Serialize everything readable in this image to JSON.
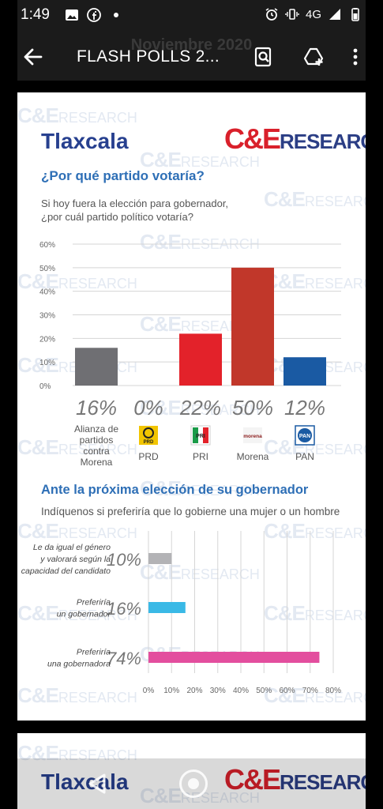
{
  "status_bar": {
    "time": "1:49",
    "network": "4G"
  },
  "app_bar": {
    "title": "FLASH POLLS 2...",
    "ghost_header": "Noviembre 2020"
  },
  "document": {
    "state": "Tlaxcala",
    "logo_ce": "C&E",
    "logo_research": "RESEARCH",
    "watermark": "C&E",
    "watermark_small": "RESEARCH",
    "question1_title": "¿Por qué partido votaría?",
    "question1_text_line1": "Si hoy fuera la elección para gobernador,",
    "question1_text_line2": "¿por cuál partido político votaría?",
    "question2_title": "Ante la próxima elección de su gobernador",
    "question2_text": "Indíquenos si preferiría que lo gobierne una mujer o un hombre"
  },
  "chart_data": [
    {
      "type": "bar",
      "title": "",
      "categories": [
        "Alianza de partidos contra Morena",
        "PRD",
        "PRI",
        "Morena",
        "PAN"
      ],
      "category_lines": [
        [
          "Alianza de",
          "partidos",
          "contra",
          "Morena"
        ],
        [
          "PRD"
        ],
        [
          "PRI"
        ],
        [
          "Morena"
        ],
        [
          "PAN"
        ]
      ],
      "values": [
        16,
        0,
        22,
        50,
        12
      ],
      "value_labels": [
        "16%",
        "0%",
        "22%",
        "50%",
        "12%"
      ],
      "colors": [
        "#6f6f73",
        "#f2c500",
        "#e3222a",
        "#c1372a",
        "#1a5aa3"
      ],
      "icons": [
        "",
        "prd-logo-icon",
        "pri-logo-icon",
        "morena-logo-icon",
        "pan-logo-icon"
      ],
      "icon_texts": [
        "",
        "PRD",
        "PRI",
        "morena",
        "PAN"
      ],
      "yticks": [
        "0%",
        "10%",
        "20%",
        "30%",
        "40%",
        "50%",
        "60%"
      ],
      "ylim": [
        0,
        60
      ],
      "grid": true
    },
    {
      "type": "bar",
      "orientation": "horizontal",
      "title": "",
      "categories": [
        "Le da igual el género y valorará según la capacidad del candidato",
        "Preferiría un gobernador",
        "Preferiría una gobernadora"
      ],
      "category_lines": [
        [
          "Le da igual el género",
          "y valorará según la",
          "capacidad del candidato"
        ],
        [
          "Preferiría",
          "un gobernador"
        ],
        [
          "Preferiría",
          "una gobernadora"
        ]
      ],
      "values": [
        10,
        16,
        74
      ],
      "value_labels": [
        "10%",
        "16%",
        "74%"
      ],
      "colors": [
        "#b3b3b6",
        "#3ab9e6",
        "#e34e9e"
      ],
      "xticks": [
        "0%",
        "10%",
        "20%",
        "30%",
        "40%",
        "50%",
        "60%",
        "70%",
        "80%"
      ],
      "xlim": [
        0,
        80
      ],
      "grid": true
    }
  ]
}
